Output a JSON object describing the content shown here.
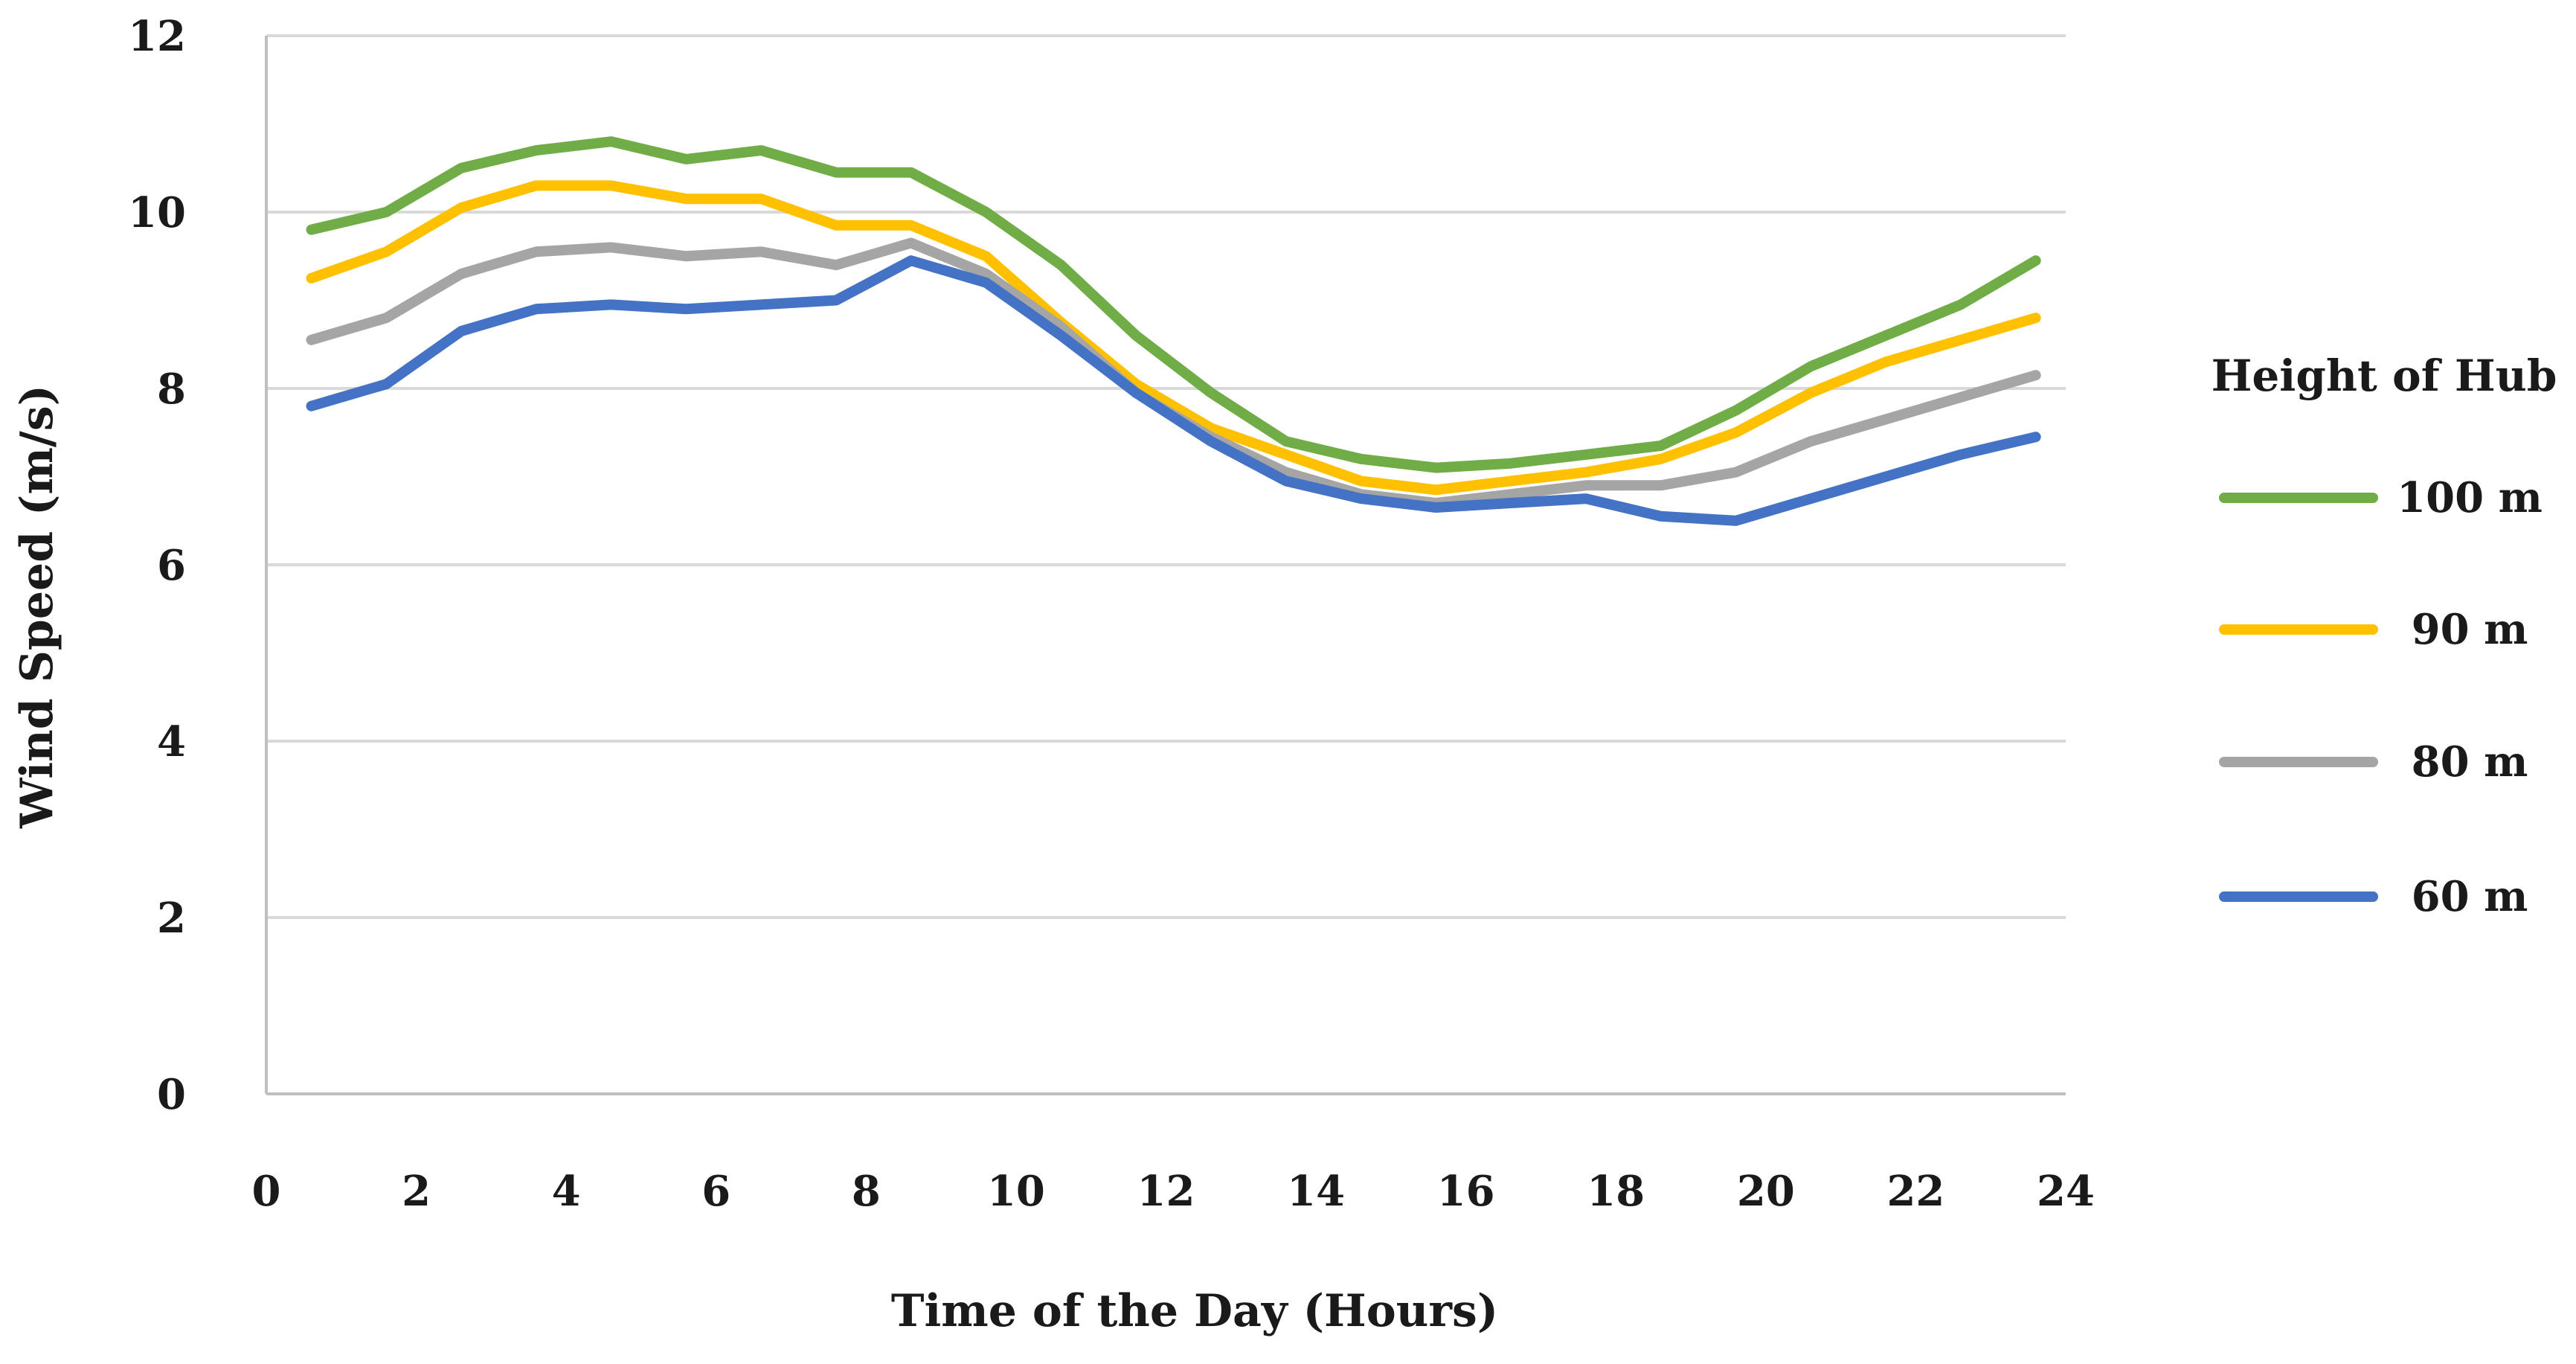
{
  "chart_data": {
    "type": "line",
    "title": "",
    "xlabel": "Time of the Day (Hours)",
    "ylabel": "Wind Speed (m/s)",
    "xlim": [
      0,
      24
    ],
    "ylim": [
      0,
      12
    ],
    "x_ticks": [
      "0",
      "2",
      "4",
      "6",
      "8",
      "10",
      "12",
      "14",
      "16",
      "18",
      "20",
      "22",
      "24"
    ],
    "y_ticks": [
      "0",
      "2",
      "4",
      "6",
      "8",
      "10",
      "12"
    ],
    "grid": "horizontal",
    "legend_title": "Height of Hub",
    "legend_position": "right",
    "x": [
      0.6,
      1.6,
      2.6,
      3.6,
      4.6,
      5.6,
      6.6,
      7.6,
      8.6,
      9.6,
      10.6,
      11.6,
      12.6,
      13.6,
      14.6,
      15.6,
      16.6,
      17.6,
      18.6,
      19.6,
      20.6,
      21.6,
      22.6,
      23.6
    ],
    "series": [
      {
        "name": "100 m",
        "color": "#70AD47",
        "values": [
          9.8,
          10.0,
          10.5,
          10.7,
          10.8,
          10.6,
          10.7,
          10.45,
          10.45,
          10.0,
          9.4,
          8.6,
          7.95,
          7.4,
          7.2,
          7.1,
          7.15,
          7.25,
          7.35,
          7.75,
          8.25,
          8.6,
          8.95,
          9.45
        ],
        "legend_color": "#70AD47"
      },
      {
        "name": "90 m",
        "color": "#FFC000",
        "values": [
          9.25,
          9.55,
          10.05,
          10.3,
          10.3,
          10.15,
          10.15,
          9.85,
          9.85,
          9.5,
          8.75,
          8.05,
          7.55,
          7.25,
          6.95,
          6.85,
          6.95,
          7.05,
          7.2,
          7.5,
          7.95,
          8.3,
          8.55,
          8.8
        ]
      },
      {
        "name": "80 m",
        "color": "#A5A5A5",
        "values": [
          8.55,
          8.8,
          9.3,
          9.55,
          9.6,
          9.5,
          9.55,
          9.4,
          9.65,
          9.3,
          8.7,
          7.95,
          7.45,
          7.05,
          6.8,
          6.7,
          6.8,
          6.9,
          6.9,
          7.05,
          7.4,
          7.65,
          7.9,
          8.15
        ]
      },
      {
        "name": "60 m",
        "color": "#4472C4",
        "values": [
          7.8,
          8.05,
          8.65,
          8.9,
          8.95,
          8.9,
          8.95,
          9.0,
          9.45,
          9.2,
          8.6,
          7.95,
          7.4,
          6.95,
          6.75,
          6.65,
          6.7,
          6.75,
          6.55,
          6.5,
          6.75,
          7.0,
          7.25,
          7.45
        ]
      }
    ]
  }
}
